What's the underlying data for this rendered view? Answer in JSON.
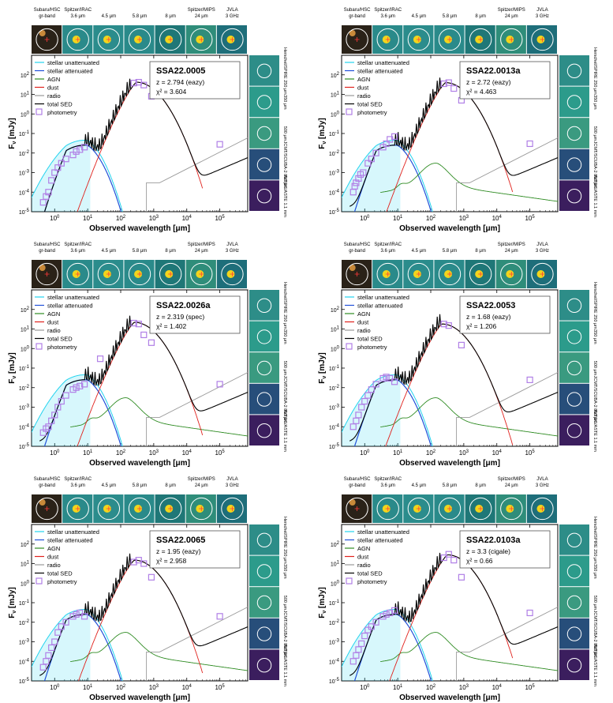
{
  "shared": {
    "cutout_bands": [
      {
        "name": "Subaru/HSC",
        "band": "gr-band"
      },
      {
        "name": "Spitzer/IRAC",
        "band": "3.6 μm"
      },
      {
        "name": "",
        "band": "4.5 μm"
      },
      {
        "name": "",
        "band": "5.8 μm"
      },
      {
        "name": "",
        "band": "8 μm"
      },
      {
        "name": "Spitzer/MIPS",
        "band": "24 μm"
      },
      {
        "name": "JVLA",
        "band": "3 GHz"
      }
    ],
    "side_bands": [
      "Herschel/SPIRE 250 μm",
      "350 μm",
      "500 μm",
      "JCMT/SCUBA-2 850 μm",
      "AzTEC/ASTE 1.1 mm"
    ],
    "xlabel": "Observed wavelength [μm]",
    "ylabel": "F_ν [mJy]",
    "xtick_labels": [
      "10^0",
      "10^1",
      "10^2",
      "10^3",
      "10^4",
      "10^5"
    ],
    "ytick_labels": [
      "10^2",
      "10^1",
      "10^0",
      "10^-1",
      "10^-2",
      "10^-3",
      "10^-4",
      "10^-5"
    ],
    "legend_entries": [
      {
        "label": "stellar unattenuated",
        "color": "#22d3ee"
      },
      {
        "label": "stellar attenuated",
        "color": "#1f4fd8"
      },
      {
        "label": "AGN",
        "color": "#2e8b22"
      },
      {
        "label": "dust",
        "color": "#e0211c"
      },
      {
        "label": "radio",
        "color": "#9a9a9a"
      },
      {
        "label": "total SED",
        "color": "#000000"
      },
      {
        "label": "photometry",
        "color": "#b07fe6"
      }
    ],
    "colors": {
      "stellar_unatt": "#22d3ee",
      "stellar_att": "#1f4fd8",
      "agn": "#2e8b22",
      "dust": "#e0211c",
      "radio": "#9a9a9a",
      "total": "#000000",
      "photometry": "#b07fe6"
    }
  },
  "chart_data": [
    {
      "type": "line",
      "title": "SSA22.0005",
      "z_text": "z = 2.794 (eazy)",
      "chi2_text": "χ² = 3.604",
      "xlim": [
        0.2,
        700000
      ],
      "ylim": [
        1e-05,
        1000
      ],
      "has_agn": false,
      "peak": {
        "wavelength": 300,
        "flux": 42
      },
      "photometry": {
        "x": [
          0.45,
          0.55,
          0.65,
          0.8,
          1.0,
          1.25,
          1.6,
          2.2,
          3.6,
          4.5,
          5.8,
          8.0,
          250,
          350,
          500,
          850,
          100000
        ],
        "y": [
          3e-05,
          6e-05,
          0.0001,
          0.0004,
          0.001,
          0.0018,
          0.003,
          0.005,
          0.008,
          0.012,
          0.015,
          0.02,
          38,
          42,
          30,
          8,
          0.028
        ]
      }
    },
    {
      "type": "line",
      "title": "SSA22.0013a",
      "z_text": "z = 2.72 (eazy)",
      "chi2_text": "χ² = 4.463",
      "xlim": [
        0.2,
        700000
      ],
      "ylim": [
        1e-05,
        1000
      ],
      "has_agn": true,
      "peak": {
        "wavelength": 280,
        "flux": 40
      },
      "photometry": {
        "x": [
          0.45,
          0.5,
          0.55,
          0.65,
          0.75,
          0.9,
          1.25,
          1.6,
          2.2,
          3.6,
          4.5,
          5.8,
          8.0,
          250,
          350,
          500,
          850,
          100000
        ],
        "y": [
          0.0001,
          0.0002,
          0.0003,
          0.0005,
          0.0008,
          0.001,
          0.003,
          0.005,
          0.01,
          0.02,
          0.03,
          0.05,
          0.07,
          35,
          40,
          20,
          5,
          0.03
        ]
      }
    },
    {
      "type": "line",
      "title": "SSA22.0026a",
      "z_text": "z = 2.319 (spec)",
      "chi2_text": "χ² = 1.402",
      "xlim": [
        0.2,
        700000
      ],
      "ylim": [
        1e-05,
        1000
      ],
      "has_agn": true,
      "peak": {
        "wavelength": 260,
        "flux": 22
      },
      "photometry": {
        "x": [
          0.45,
          0.55,
          0.65,
          0.8,
          1.0,
          1.25,
          1.6,
          2.2,
          3.6,
          4.5,
          5.8,
          8.0,
          24,
          250,
          350,
          500,
          850,
          100000
        ],
        "y": [
          5e-05,
          8e-05,
          0.0001,
          0.0002,
          0.0004,
          0.001,
          0.002,
          0.004,
          0.008,
          0.01,
          0.012,
          0.015,
          0.3,
          20,
          18,
          5,
          2,
          0.015
        ]
      }
    },
    {
      "type": "line",
      "title": "SSA22.0053",
      "z_text": "z = 1.68 (eazy)",
      "chi2_text": "χ² = 1.206",
      "xlim": [
        0.2,
        700000
      ],
      "ylim": [
        1e-05,
        1000
      ],
      "has_agn": true,
      "peak": {
        "wavelength": 220,
        "flux": 18
      },
      "photometry": {
        "x": [
          0.45,
          0.55,
          0.65,
          0.8,
          1.0,
          1.25,
          1.6,
          2.2,
          3.6,
          4.5,
          5.8,
          8.0,
          250,
          350,
          850,
          100000
        ],
        "y": [
          0.0001,
          0.0002,
          0.0004,
          0.001,
          0.002,
          0.004,
          0.008,
          0.015,
          0.03,
          0.035,
          0.03,
          0.02,
          18,
          15,
          1.5,
          0.025
        ]
      }
    },
    {
      "type": "line",
      "title": "SSA22.0065",
      "z_text": "z = 1.95 (eazy)",
      "chi2_text": "χ² = 2.958",
      "xlim": [
        0.2,
        700000
      ],
      "ylim": [
        1e-05,
        1000
      ],
      "has_agn": true,
      "peak": {
        "wavelength": 260,
        "flux": 15
      },
      "photometry": {
        "x": [
          0.45,
          0.55,
          0.65,
          0.8,
          1.0,
          1.25,
          1.6,
          2.2,
          3.6,
          4.5,
          5.8,
          8.0,
          250,
          350,
          500,
          850,
          100000
        ],
        "y": [
          5e-05,
          0.0001,
          0.0002,
          0.0005,
          0.001,
          0.003,
          0.006,
          0.01,
          0.02,
          0.025,
          0.03,
          0.02,
          12,
          15,
          10,
          2,
          0.02
        ]
      }
    },
    {
      "type": "line",
      "title": "SSA22.0103a",
      "z_text": "z = 3.3 (cigale)",
      "chi2_text": "χ² = 0.66",
      "xlim": [
        0.2,
        700000
      ],
      "ylim": [
        1e-05,
        1000
      ],
      "has_agn": true,
      "peak": {
        "wavelength": 320,
        "flux": 28
      },
      "photometry": {
        "x": [
          0.45,
          0.55,
          0.65,
          0.8,
          1.0,
          1.25,
          1.6,
          2.2,
          3.6,
          4.5,
          5.8,
          8.0,
          250,
          350,
          500,
          850,
          100000
        ],
        "y": [
          0.0001,
          0.0002,
          0.0004,
          0.0008,
          0.002,
          0.004,
          0.006,
          0.01,
          0.02,
          0.025,
          0.03,
          0.04,
          20,
          30,
          15,
          2,
          0.03
        ]
      }
    }
  ]
}
